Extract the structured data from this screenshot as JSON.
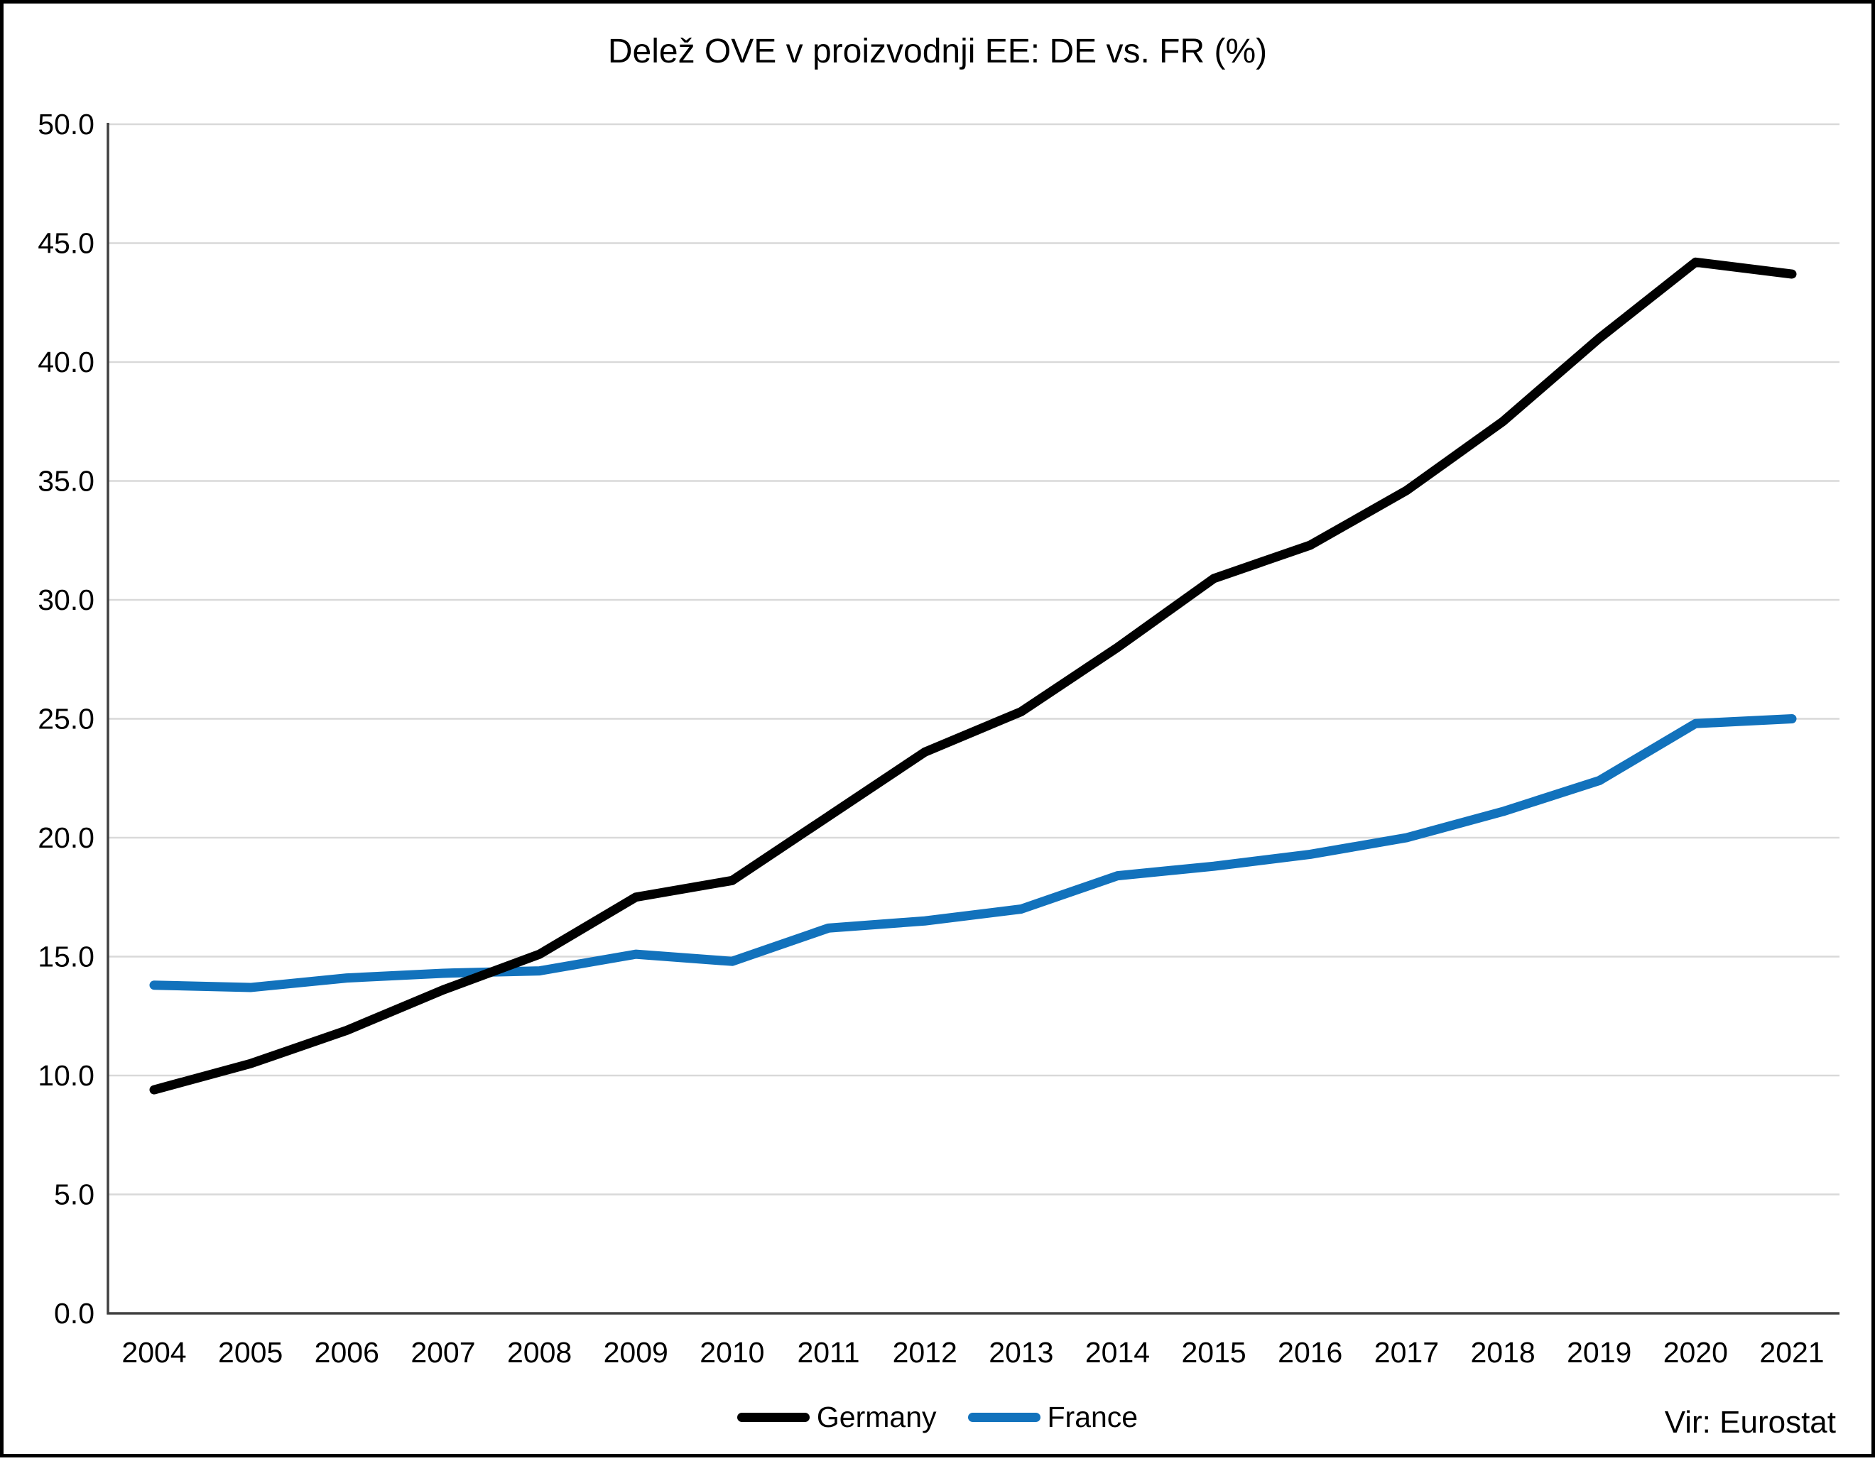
{
  "title": "Delež OVE v proizvodnji EE: DE vs. FR (%)",
  "source": "Vir: Eurostat",
  "colors": {
    "germany_line": "#000000",
    "france_line": "#1272BC",
    "gridline": "#D9D9D9",
    "axis": "#404040",
    "text": "#000000",
    "border": "#000000"
  },
  "chart_data": {
    "type": "line",
    "title": "Delež OVE v proizvodnji EE: DE vs. FR (%)",
    "categories": [
      "2004",
      "2005",
      "2006",
      "2007",
      "2008",
      "2009",
      "2010",
      "2011",
      "2012",
      "2013",
      "2014",
      "2015",
      "2016",
      "2017",
      "2018",
      "2019",
      "2020",
      "2021"
    ],
    "series": [
      {
        "name": "Germany",
        "color": "#000000",
        "values": [
          9.4,
          10.5,
          11.9,
          13.6,
          15.1,
          17.5,
          18.2,
          20.9,
          23.6,
          25.3,
          28.0,
          30.9,
          32.3,
          34.6,
          37.5,
          41.0,
          44.2,
          43.7
        ]
      },
      {
        "name": "France",
        "color": "#1272BC",
        "values": [
          13.8,
          13.7,
          14.1,
          14.3,
          14.4,
          15.1,
          14.8,
          16.2,
          16.5,
          17.0,
          18.4,
          18.8,
          19.3,
          20.0,
          21.1,
          22.4,
          24.8,
          25.0
        ]
      }
    ],
    "xlabel": "",
    "ylabel": "",
    "ylim": [
      0,
      50
    ],
    "ytick_step": 5,
    "ytick_labels": [
      "0.0",
      "5.0",
      "10.0",
      "15.0",
      "20.0",
      "25.0",
      "30.0",
      "35.0",
      "40.0",
      "45.0",
      "50.0"
    ],
    "grid": true,
    "legend_position": "bottom",
    "source": "Vir: Eurostat"
  }
}
